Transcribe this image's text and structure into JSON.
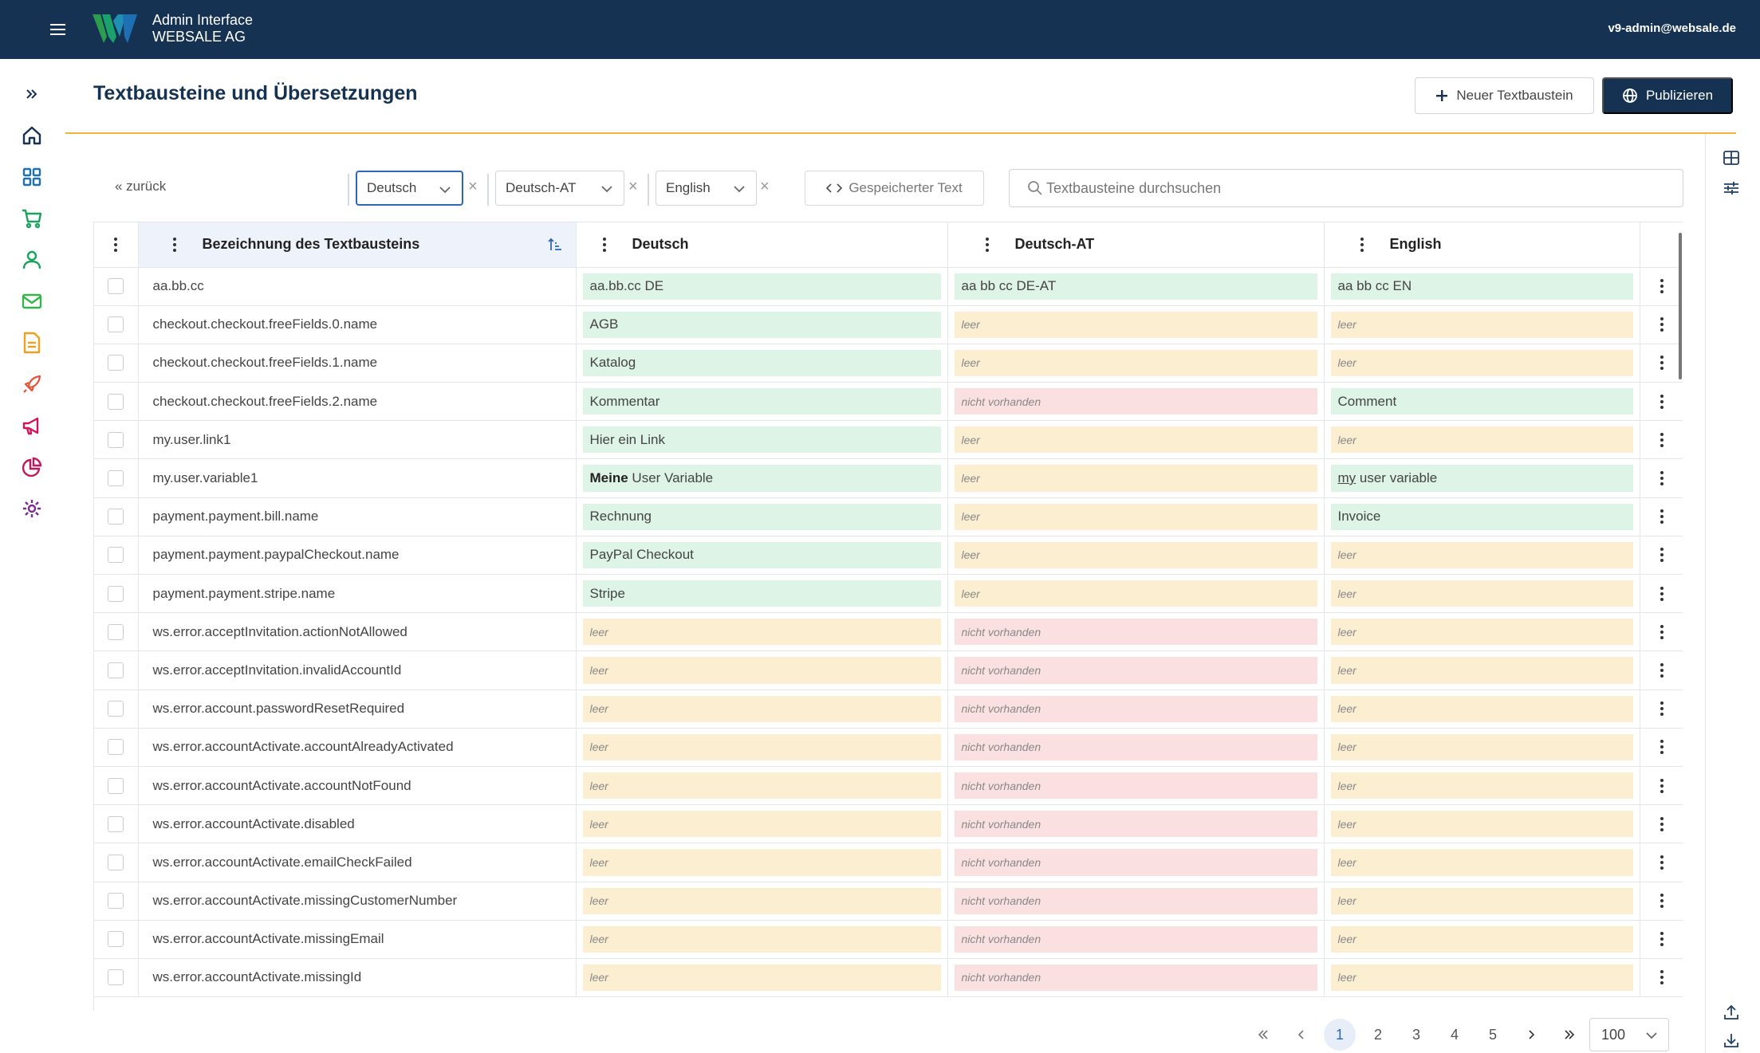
{
  "topbar": {
    "app_line1": "Admin Interface",
    "app_line2": "WEBSALE AG",
    "user": "v9-admin@websale.de",
    "brand_colors": [
      "#2a9d4f",
      "#1f6fb3"
    ]
  },
  "sidebar": {
    "items": [
      {
        "icon": "expand-icon",
        "color": "#153252"
      },
      {
        "icon": "home-icon",
        "color": "#153252"
      },
      {
        "icon": "dashboard-icon",
        "color": "#1f6fb3"
      },
      {
        "icon": "cart-icon",
        "color": "#1aa260"
      },
      {
        "icon": "user-icon",
        "color": "#1aa260"
      },
      {
        "icon": "mail-icon",
        "color": "#34b44a"
      },
      {
        "icon": "document-icon",
        "color": "#f0a020"
      },
      {
        "icon": "rocket-icon",
        "color": "#e8503a"
      },
      {
        "icon": "megaphone-icon",
        "color": "#d4145a"
      },
      {
        "icon": "pie-chart-icon",
        "color": "#c2185b"
      },
      {
        "icon": "settings-icon",
        "color": "#7b2d8e"
      }
    ]
  },
  "header": {
    "title": "Textbausteine und Übersetzungen",
    "new_button": "Neuer Textbaustein",
    "publish_button": "Publizieren"
  },
  "toolbar": {
    "back": "« zurück",
    "lang_selects": [
      "Deutsch",
      "Deutsch-AT",
      "English"
    ],
    "saved_text_button": "Gespeicherter Text",
    "search_placeholder": "Textbausteine durchsuchen"
  },
  "table": {
    "columns": [
      "Bezeichnung des Textbausteins",
      "Deutsch",
      "Deutsch-AT",
      "English"
    ],
    "status_colors": {
      "ok": "#def4e6",
      "leer": "#fcefd1",
      "nicht_vorhanden": "#fbe0e1"
    },
    "rows": [
      {
        "key": "aa.bb.cc",
        "cells": [
          {
            "s": "ok",
            "t": "aa.bb.cc DE"
          },
          {
            "s": "ok",
            "t": "aa bb cc DE-AT"
          },
          {
            "s": "ok",
            "t": "aa bb cc EN"
          }
        ]
      },
      {
        "key": "checkout.checkout.freeFields.0.name",
        "cells": [
          {
            "s": "ok",
            "t": "AGB"
          },
          {
            "s": "leer",
            "t": "leer"
          },
          {
            "s": "leer",
            "t": "leer"
          }
        ]
      },
      {
        "key": "checkout.checkout.freeFields.1.name",
        "cells": [
          {
            "s": "ok",
            "t": "Katalog"
          },
          {
            "s": "leer",
            "t": "leer"
          },
          {
            "s": "leer",
            "t": "leer"
          }
        ]
      },
      {
        "key": "checkout.checkout.freeFields.2.name",
        "cells": [
          {
            "s": "ok",
            "t": "Kommentar"
          },
          {
            "s": "nv",
            "t": "nicht vorhanden"
          },
          {
            "s": "ok",
            "t": "Comment"
          }
        ]
      },
      {
        "key": "my.user.link1",
        "cells": [
          {
            "s": "ok",
            "t": "Hier ein Link"
          },
          {
            "s": "leer",
            "t": "leer"
          },
          {
            "s": "leer",
            "t": "leer"
          }
        ]
      },
      {
        "key": "my.user.variable1",
        "cells": [
          {
            "s": "ok",
            "t": "Meine User Variable",
            "bold": "Meine",
            "rest": " User Variable"
          },
          {
            "s": "leer",
            "t": "leer"
          },
          {
            "s": "ok",
            "t": "my user variable",
            "u": "my",
            "rest": " user variable"
          }
        ]
      },
      {
        "key": "payment.payment.bill.name",
        "cells": [
          {
            "s": "ok",
            "t": "Rechnung"
          },
          {
            "s": "leer",
            "t": "leer"
          },
          {
            "s": "ok",
            "t": "Invoice"
          }
        ]
      },
      {
        "key": "payment.payment.paypalCheckout.name",
        "cells": [
          {
            "s": "ok",
            "t": "PayPal Checkout"
          },
          {
            "s": "leer",
            "t": "leer"
          },
          {
            "s": "leer",
            "t": "leer"
          }
        ]
      },
      {
        "key": "payment.payment.stripe.name",
        "cells": [
          {
            "s": "ok",
            "t": "Stripe"
          },
          {
            "s": "leer",
            "t": "leer"
          },
          {
            "s": "leer",
            "t": "leer"
          }
        ]
      },
      {
        "key": "ws.error.acceptInvitation.actionNotAllowed",
        "cells": [
          {
            "s": "leer",
            "t": "leer"
          },
          {
            "s": "nv",
            "t": "nicht vorhanden"
          },
          {
            "s": "leer",
            "t": "leer"
          }
        ]
      },
      {
        "key": "ws.error.acceptInvitation.invalidAccountId",
        "cells": [
          {
            "s": "leer",
            "t": "leer"
          },
          {
            "s": "nv",
            "t": "nicht vorhanden"
          },
          {
            "s": "leer",
            "t": "leer"
          }
        ]
      },
      {
        "key": "ws.error.account.passwordResetRequired",
        "cells": [
          {
            "s": "leer",
            "t": "leer"
          },
          {
            "s": "nv",
            "t": "nicht vorhanden"
          },
          {
            "s": "leer",
            "t": "leer"
          }
        ]
      },
      {
        "key": "ws.error.accountActivate.accountAlreadyActivated",
        "cells": [
          {
            "s": "leer",
            "t": "leer"
          },
          {
            "s": "nv",
            "t": "nicht vorhanden"
          },
          {
            "s": "leer",
            "t": "leer"
          }
        ]
      },
      {
        "key": "ws.error.accountActivate.accountNotFound",
        "cells": [
          {
            "s": "leer",
            "t": "leer"
          },
          {
            "s": "nv",
            "t": "nicht vorhanden"
          },
          {
            "s": "leer",
            "t": "leer"
          }
        ]
      },
      {
        "key": "ws.error.accountActivate.disabled",
        "cells": [
          {
            "s": "leer",
            "t": "leer"
          },
          {
            "s": "nv",
            "t": "nicht vorhanden"
          },
          {
            "s": "leer",
            "t": "leer"
          }
        ]
      },
      {
        "key": "ws.error.accountActivate.emailCheckFailed",
        "cells": [
          {
            "s": "leer",
            "t": "leer"
          },
          {
            "s": "nv",
            "t": "nicht vorhanden"
          },
          {
            "s": "leer",
            "t": "leer"
          }
        ]
      },
      {
        "key": "ws.error.accountActivate.missingCustomerNumber",
        "cells": [
          {
            "s": "leer",
            "t": "leer"
          },
          {
            "s": "nv",
            "t": "nicht vorhanden"
          },
          {
            "s": "leer",
            "t": "leer"
          }
        ]
      },
      {
        "key": "ws.error.accountActivate.missingEmail",
        "cells": [
          {
            "s": "leer",
            "t": "leer"
          },
          {
            "s": "nv",
            "t": "nicht vorhanden"
          },
          {
            "s": "leer",
            "t": "leer"
          }
        ]
      },
      {
        "key": "ws.error.accountActivate.missingId",
        "cells": [
          {
            "s": "leer",
            "t": "leer"
          },
          {
            "s": "nv",
            "t": "nicht vorhanden"
          },
          {
            "s": "leer",
            "t": "leer"
          }
        ]
      }
    ]
  },
  "pagination": {
    "pages": [
      "1",
      "2",
      "3",
      "4",
      "5"
    ],
    "current": "1",
    "page_size": "100"
  }
}
